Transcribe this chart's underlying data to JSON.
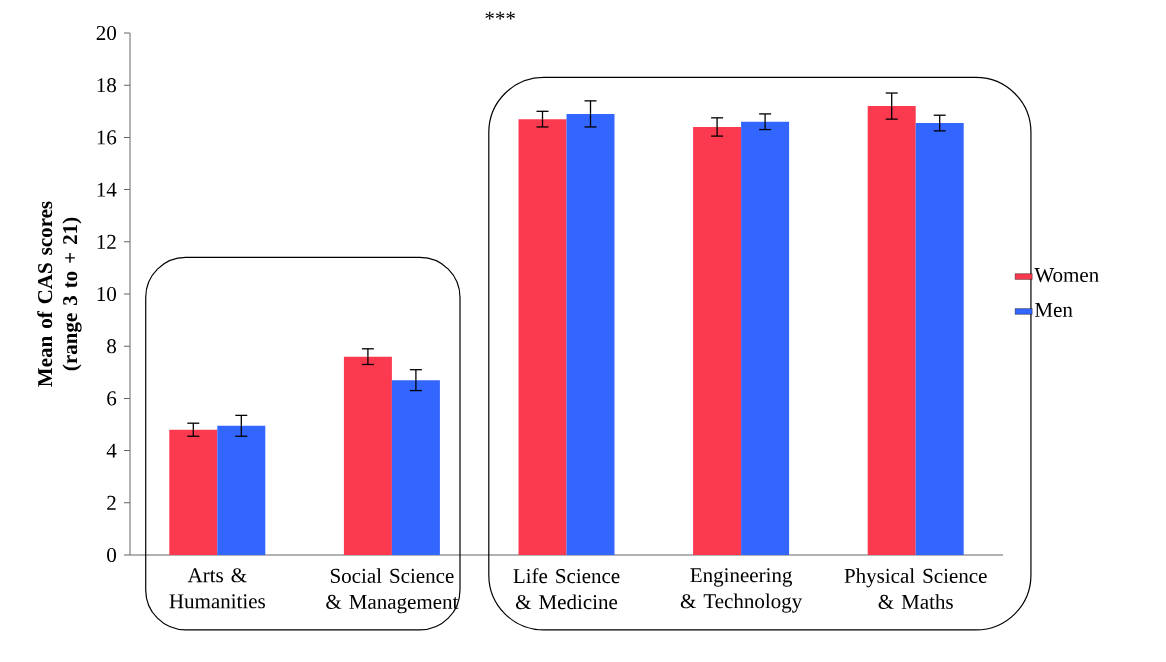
{
  "chart_data": {
    "type": "bar",
    "ylabel": "Mean of CAS scores (range 3 to + 21)",
    "categories": [
      "Arts & Humanities",
      "Social Science & Management",
      "Life Science & Medicine",
      "Engineering & Technology",
      "Physical Science & Maths"
    ],
    "series": [
      {
        "name": "Women",
        "color": "#fc3a4f",
        "values": [
          4.8,
          7.6,
          16.7,
          16.4,
          17.2
        ],
        "errors": [
          0.25,
          0.3,
          0.3,
          0.35,
          0.5
        ]
      },
      {
        "name": "Men",
        "color": "#3366ff",
        "values": [
          4.95,
          6.7,
          16.9,
          16.6,
          16.55
        ],
        "errors": [
          0.4,
          0.4,
          0.5,
          0.3,
          0.3
        ]
      }
    ],
    "ylim": [
      0,
      20
    ],
    "yticks": [
      0,
      2,
      4,
      6,
      8,
      10,
      12,
      14,
      16,
      18,
      20
    ],
    "legend": "right",
    "annotations": [
      "***"
    ]
  }
}
